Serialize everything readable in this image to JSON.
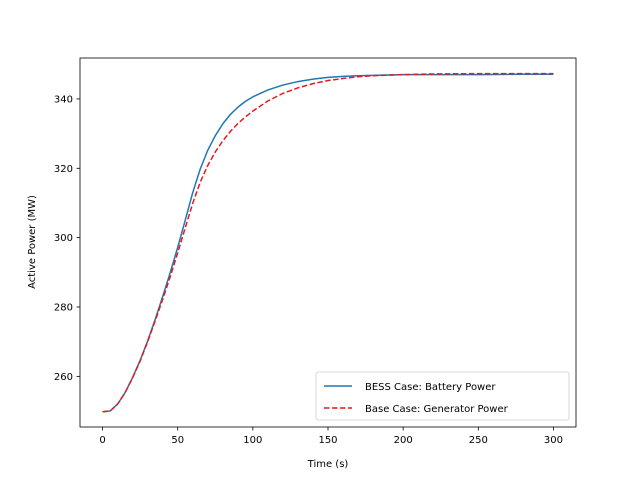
{
  "chart_data": {
    "type": "line",
    "title": "",
    "xlabel": "Time (s)",
    "ylabel": "Active Power (MW)",
    "xlim": [
      -15,
      315
    ],
    "ylim": [
      245.4,
      351.8
    ],
    "xticks": [
      0,
      50,
      100,
      150,
      200,
      250,
      300
    ],
    "yticks": [
      260,
      280,
      300,
      320,
      340
    ],
    "grid": false,
    "legend_position": "lower-right",
    "series": [
      {
        "name": "BESS Case: Battery Power",
        "color": "#1f77b4",
        "style": "solid",
        "x": [
          0,
          5,
          10,
          15,
          20,
          25,
          30,
          35,
          40,
          45,
          50,
          55,
          60,
          65,
          70,
          75,
          80,
          85,
          90,
          95,
          100,
          110,
          120,
          130,
          140,
          150,
          160,
          170,
          180,
          200,
          220,
          250,
          280,
          300
        ],
        "y": [
          249.8,
          250.0,
          252.0,
          255.3,
          259.7,
          264.6,
          270.2,
          276.4,
          283.0,
          289.9,
          297.2,
          305.0,
          313.0,
          319.8,
          325.2,
          329.4,
          332.8,
          335.5,
          337.6,
          339.3,
          340.6,
          342.6,
          344.0,
          345.0,
          345.7,
          346.2,
          346.5,
          346.7,
          346.8,
          347.0,
          347.0,
          347.0,
          347.1,
          347.1
        ]
      },
      {
        "name": "Base Case: Generator Power",
        "color": "#e41a1c",
        "style": "dashed",
        "x": [
          0,
          5,
          10,
          15,
          20,
          25,
          30,
          35,
          40,
          45,
          50,
          55,
          60,
          65,
          70,
          75,
          80,
          85,
          90,
          95,
          100,
          110,
          120,
          130,
          140,
          150,
          160,
          170,
          180,
          200,
          220,
          250,
          280,
          300
        ],
        "y": [
          249.8,
          250.0,
          252.0,
          255.3,
          259.6,
          264.4,
          270.0,
          276.0,
          282.2,
          288.7,
          295.6,
          302.8,
          309.9,
          316.0,
          320.8,
          324.7,
          327.9,
          330.6,
          332.9,
          334.8,
          336.5,
          339.4,
          341.6,
          343.2,
          344.4,
          345.3,
          345.9,
          346.4,
          346.7,
          347.0,
          347.2,
          347.3,
          347.3,
          347.3
        ]
      }
    ]
  }
}
